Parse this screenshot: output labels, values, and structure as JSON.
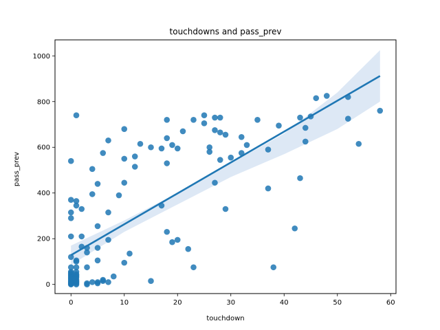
{
  "chart_data": {
    "type": "scatter",
    "title": "touchdowns and pass_prev",
    "xlabel": "touchdown",
    "ylabel": "pass_prev",
    "xlim": [
      -3,
      61
    ],
    "ylim": [
      -40,
      1070
    ],
    "xticks": [
      0,
      10,
      20,
      30,
      40,
      50,
      60
    ],
    "yticks": [
      0,
      200,
      400,
      600,
      800,
      1000
    ],
    "grid": false,
    "colors": {
      "points": "#1f77b4",
      "line": "#1f77b4",
      "band": "#c6d9ef"
    },
    "regression": {
      "x": [
        0,
        58
      ],
      "y": [
        128,
        912
      ]
    },
    "confidence_band": {
      "x": [
        0,
        10,
        20,
        30,
        40,
        50,
        58
      ],
      "lower": [
        85,
        230,
        350,
        470,
        570,
        680,
        800
      ],
      "upper": [
        170,
        280,
        400,
        530,
        660,
        840,
        1025
      ]
    },
    "points": [
      [
        0,
        0
      ],
      [
        0,
        2
      ],
      [
        0,
        5
      ],
      [
        0,
        8
      ],
      [
        0,
        12
      ],
      [
        0,
        15
      ],
      [
        0,
        20
      ],
      [
        0,
        25
      ],
      [
        0,
        30
      ],
      [
        0,
        35
      ],
      [
        0,
        40
      ],
      [
        0,
        45
      ],
      [
        0,
        50
      ],
      [
        0,
        55
      ],
      [
        0,
        75
      ],
      [
        0,
        120
      ],
      [
        0,
        210
      ],
      [
        0,
        290
      ],
      [
        0,
        315
      ],
      [
        0,
        370
      ],
      [
        0,
        540
      ],
      [
        1,
        0
      ],
      [
        1,
        5
      ],
      [
        1,
        10
      ],
      [
        1,
        15
      ],
      [
        1,
        20
      ],
      [
        1,
        30
      ],
      [
        1,
        35
      ],
      [
        1,
        40
      ],
      [
        1,
        45
      ],
      [
        1,
        55
      ],
      [
        1,
        75
      ],
      [
        1,
        100
      ],
      [
        1,
        105
      ],
      [
        1,
        345
      ],
      [
        1,
        365
      ],
      [
        1,
        740
      ],
      [
        2,
        165
      ],
      [
        2,
        210
      ],
      [
        2,
        330
      ],
      [
        3,
        0
      ],
      [
        3,
        5
      ],
      [
        3,
        75
      ],
      [
        3,
        140
      ],
      [
        3,
        160
      ],
      [
        4,
        10
      ],
      [
        4,
        395
      ],
      [
        4,
        505
      ],
      [
        5,
        5
      ],
      [
        5,
        10
      ],
      [
        5,
        105
      ],
      [
        5,
        160
      ],
      [
        5,
        255
      ],
      [
        5,
        440
      ],
      [
        6,
        15
      ],
      [
        6,
        20
      ],
      [
        6,
        575
      ],
      [
        7,
        10
      ],
      [
        7,
        195
      ],
      [
        7,
        315
      ],
      [
        7,
        630
      ],
      [
        8,
        35
      ],
      [
        9,
        390
      ],
      [
        10,
        95
      ],
      [
        10,
        445
      ],
      [
        10,
        550
      ],
      [
        10,
        680
      ],
      [
        11,
        135
      ],
      [
        12,
        515
      ],
      [
        12,
        560
      ],
      [
        13,
        615
      ],
      [
        15,
        15
      ],
      [
        15,
        600
      ],
      [
        17,
        345
      ],
      [
        17,
        595
      ],
      [
        18,
        230
      ],
      [
        18,
        530
      ],
      [
        18,
        640
      ],
      [
        18,
        720
      ],
      [
        19,
        185
      ],
      [
        19,
        610
      ],
      [
        20,
        195
      ],
      [
        20,
        595
      ],
      [
        21,
        670
      ],
      [
        22,
        155
      ],
      [
        23,
        75
      ],
      [
        23,
        720
      ],
      [
        25,
        705
      ],
      [
        25,
        740
      ],
      [
        26,
        580
      ],
      [
        26,
        600
      ],
      [
        27,
        445
      ],
      [
        27,
        675
      ],
      [
        27,
        730
      ],
      [
        28,
        545
      ],
      [
        28,
        665
      ],
      [
        28,
        730
      ],
      [
        29,
        330
      ],
      [
        29,
        655
      ],
      [
        30,
        555
      ],
      [
        32,
        575
      ],
      [
        32,
        645
      ],
      [
        33,
        610
      ],
      [
        35,
        720
      ],
      [
        37,
        420
      ],
      [
        37,
        590
      ],
      [
        38,
        75
      ],
      [
        39,
        695
      ],
      [
        42,
        245
      ],
      [
        43,
        465
      ],
      [
        43,
        730
      ],
      [
        44,
        625
      ],
      [
        44,
        685
      ],
      [
        45,
        735
      ],
      [
        46,
        815
      ],
      [
        48,
        825
      ],
      [
        52,
        725
      ],
      [
        52,
        820
      ],
      [
        54,
        615
      ],
      [
        58,
        760
      ]
    ]
  }
}
